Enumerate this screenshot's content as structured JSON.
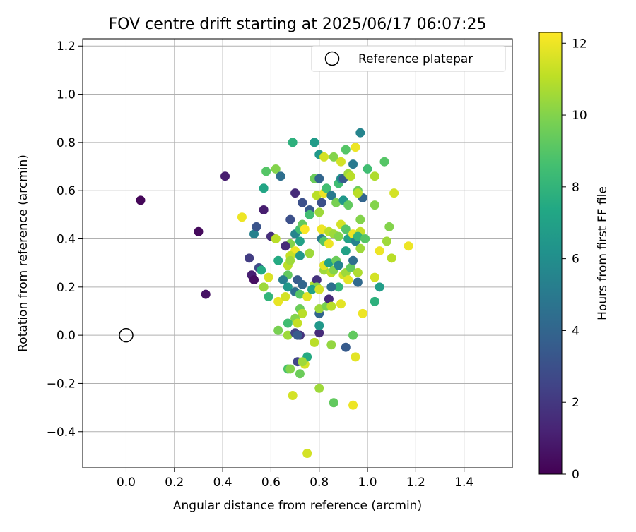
{
  "chart_data": {
    "type": "scatter",
    "title": "FOV centre drift starting at 2025/06/17 06:07:25",
    "xlabel": "Angular distance from reference (arcmin)",
    "ylabel": "Rotation from reference (arcmin)",
    "xlim": [
      -0.18,
      1.6
    ],
    "ylim": [
      -0.55,
      1.23
    ],
    "xticks": [
      0.0,
      0.2,
      0.4,
      0.6,
      0.8,
      1.0,
      1.2,
      1.4
    ],
    "xtick_labels": [
      "0.0",
      "0.2",
      "0.4",
      "0.6",
      "0.8",
      "1.0",
      "1.2",
      "1.4"
    ],
    "yticks": [
      -0.4,
      -0.2,
      0.0,
      0.2,
      0.4,
      0.6,
      0.8,
      1.0,
      1.2
    ],
    "ytick_labels": [
      "−0.4",
      "−0.2",
      "0.0",
      "0.2",
      "0.4",
      "0.6",
      "0.8",
      "1.0",
      "1.2"
    ],
    "grid": true,
    "legend": {
      "placement": "top-right",
      "entries": [
        "Reference platepar"
      ]
    },
    "reference_point": {
      "x": 0.0,
      "y": 0.0
    },
    "colorbar": {
      "label": "Hours from first FF file",
      "colormap": "viridis",
      "range": [
        0,
        12.3
      ],
      "ticks": [
        0,
        2,
        4,
        6,
        8,
        10,
        12
      ],
      "tick_labels": [
        "0",
        "2",
        "4",
        "6",
        "8",
        "10",
        "12"
      ]
    },
    "points": [
      {
        "x": 0.06,
        "y": 0.56,
        "c": 0.2
      },
      {
        "x": 0.3,
        "y": 0.43,
        "c": 0.3
      },
      {
        "x": 0.33,
        "y": 0.17,
        "c": 0.6
      },
      {
        "x": 0.41,
        "y": 0.66,
        "c": 1.0
      },
      {
        "x": 0.51,
        "y": 0.32,
        "c": 2.2
      },
      {
        "x": 0.52,
        "y": 0.25,
        "c": 1.1
      },
      {
        "x": 0.53,
        "y": 0.23,
        "c": 0.5
      },
      {
        "x": 0.55,
        "y": 0.28,
        "c": 2.8
      },
      {
        "x": 0.57,
        "y": 0.52,
        "c": 1.0
      },
      {
        "x": 0.6,
        "y": 0.41,
        "c": 1.6
      },
      {
        "x": 0.56,
        "y": 0.27,
        "c": 7.5
      },
      {
        "x": 0.53,
        "y": 0.42,
        "c": 5.3
      },
      {
        "x": 0.54,
        "y": 0.45,
        "c": 3.2
      },
      {
        "x": 0.58,
        "y": 0.68,
        "c": 9.0
      },
      {
        "x": 0.62,
        "y": 0.69,
        "c": 10.0
      },
      {
        "x": 0.64,
        "y": 0.66,
        "c": 4.5
      },
      {
        "x": 0.57,
        "y": 0.61,
        "c": 7.2
      },
      {
        "x": 0.48,
        "y": 0.49,
        "c": 12.0
      },
      {
        "x": 0.62,
        "y": 0.4,
        "c": 11.0
      },
      {
        "x": 0.59,
        "y": 0.24,
        "c": 11.6
      },
      {
        "x": 0.57,
        "y": 0.2,
        "c": 10.5
      },
      {
        "x": 0.59,
        "y": 0.16,
        "c": 8.0
      },
      {
        "x": 0.63,
        "y": 0.14,
        "c": 11.9
      },
      {
        "x": 0.66,
        "y": 0.16,
        "c": 11.5
      },
      {
        "x": 0.69,
        "y": 0.8,
        "c": 7.8
      },
      {
        "x": 0.78,
        "y": 0.8,
        "c": 6.7
      },
      {
        "x": 0.8,
        "y": 0.75,
        "c": 6.5
      },
      {
        "x": 0.82,
        "y": 0.74,
        "c": 11.5
      },
      {
        "x": 0.7,
        "y": 0.59,
        "c": 1.5
      },
      {
        "x": 0.73,
        "y": 0.55,
        "c": 3.0
      },
      {
        "x": 0.76,
        "y": 0.52,
        "c": 3.4
      },
      {
        "x": 0.76,
        "y": 0.5,
        "c": 8.5
      },
      {
        "x": 0.68,
        "y": 0.48,
        "c": 3.0
      },
      {
        "x": 0.7,
        "y": 0.42,
        "c": 5.5
      },
      {
        "x": 0.72,
        "y": 0.44,
        "c": 8.5
      },
      {
        "x": 0.73,
        "y": 0.46,
        "c": 9.3
      },
      {
        "x": 0.74,
        "y": 0.44,
        "c": 12.2
      },
      {
        "x": 0.72,
        "y": 0.39,
        "c": 7.0
      },
      {
        "x": 0.68,
        "y": 0.38,
        "c": 10.0
      },
      {
        "x": 0.66,
        "y": 0.37,
        "c": 1.5
      },
      {
        "x": 0.7,
        "y": 0.35,
        "c": 12.0
      },
      {
        "x": 0.68,
        "y": 0.33,
        "c": 11.2
      },
      {
        "x": 0.72,
        "y": 0.33,
        "c": 6.5
      },
      {
        "x": 0.76,
        "y": 0.34,
        "c": 10.5
      },
      {
        "x": 0.63,
        "y": 0.31,
        "c": 7.5
      },
      {
        "x": 0.67,
        "y": 0.29,
        "c": 11.0
      },
      {
        "x": 0.68,
        "y": 0.31,
        "c": 10.5
      },
      {
        "x": 0.67,
        "y": 0.25,
        "c": 9.3
      },
      {
        "x": 0.65,
        "y": 0.23,
        "c": 5.2
      },
      {
        "x": 0.67,
        "y": 0.2,
        "c": 6.5
      },
      {
        "x": 0.71,
        "y": 0.23,
        "c": 3.5
      },
      {
        "x": 0.73,
        "y": 0.21,
        "c": 4.0
      },
      {
        "x": 0.7,
        "y": 0.18,
        "c": 4.5
      },
      {
        "x": 0.72,
        "y": 0.17,
        "c": 9.0
      },
      {
        "x": 0.75,
        "y": 0.16,
        "c": 11.8
      },
      {
        "x": 0.78,
        "y": 0.21,
        "c": 10.8
      },
      {
        "x": 0.79,
        "y": 0.23,
        "c": 1.8
      },
      {
        "x": 0.79,
        "y": 0.2,
        "c": 10.0
      },
      {
        "x": 0.77,
        "y": 0.19,
        "c": 7.0
      },
      {
        "x": 0.8,
        "y": 0.19,
        "c": 11.5
      },
      {
        "x": 0.72,
        "y": 0.11,
        "c": 9.5
      },
      {
        "x": 0.73,
        "y": 0.09,
        "c": 11.0
      },
      {
        "x": 0.7,
        "y": 0.07,
        "c": 10.0
      },
      {
        "x": 0.71,
        "y": 0.05,
        "c": 11.2
      },
      {
        "x": 0.67,
        "y": 0.05,
        "c": 8.5
      },
      {
        "x": 0.63,
        "y": 0.02,
        "c": 9.8
      },
      {
        "x": 0.67,
        "y": 0.0,
        "c": 10.5
      },
      {
        "x": 0.7,
        "y": 0.01,
        "c": 2.5
      },
      {
        "x": 0.72,
        "y": 0.0,
        "c": 1.8
      },
      {
        "x": 0.71,
        "y": 0.0,
        "c": 3.5
      },
      {
        "x": 0.71,
        "y": -0.11,
        "c": 2.5
      },
      {
        "x": 0.74,
        "y": -0.12,
        "c": 11.5
      },
      {
        "x": 0.75,
        "y": -0.09,
        "c": 7.5
      },
      {
        "x": 0.73,
        "y": -0.11,
        "c": 10.5
      },
      {
        "x": 0.67,
        "y": -0.14,
        "c": 8.8
      },
      {
        "x": 0.68,
        "y": -0.14,
        "c": 10.0
      },
      {
        "x": 0.72,
        "y": -0.16,
        "c": 9.5
      },
      {
        "x": 0.69,
        "y": -0.25,
        "c": 11.5
      },
      {
        "x": 0.78,
        "y": -0.03,
        "c": 11.0
      },
      {
        "x": 0.8,
        "y": -0.22,
        "c": 10.5
      },
      {
        "x": 0.85,
        "y": -0.04,
        "c": 10.3
      },
      {
        "x": 0.86,
        "y": -0.28,
        "c": 9.3
      },
      {
        "x": 0.94,
        "y": -0.29,
        "c": 12.0
      },
      {
        "x": 0.95,
        "y": -0.09,
        "c": 11.8
      },
      {
        "x": 0.75,
        "y": -0.49,
        "c": 11.5
      },
      {
        "x": 0.91,
        "y": -0.05,
        "c": 3.5
      },
      {
        "x": 0.94,
        "y": 0.0,
        "c": 9.3
      },
      {
        "x": 0.8,
        "y": 0.01,
        "c": 1.5
      },
      {
        "x": 0.8,
        "y": 0.04,
        "c": 6.5
      },
      {
        "x": 0.8,
        "y": 0.09,
        "c": 4.0
      },
      {
        "x": 0.8,
        "y": 0.11,
        "c": 10.5
      },
      {
        "x": 0.83,
        "y": 0.12,
        "c": 9.8
      },
      {
        "x": 0.84,
        "y": 0.15,
        "c": 1.5
      },
      {
        "x": 0.85,
        "y": 0.12,
        "c": 11.0
      },
      {
        "x": 0.89,
        "y": 0.13,
        "c": 11.8
      },
      {
        "x": 0.88,
        "y": 0.2,
        "c": 8.0
      },
      {
        "x": 0.85,
        "y": 0.2,
        "c": 4.5
      },
      {
        "x": 0.82,
        "y": 0.27,
        "c": 10.5
      },
      {
        "x": 0.82,
        "y": 0.29,
        "c": 11.8
      },
      {
        "x": 0.84,
        "y": 0.3,
        "c": 7.0
      },
      {
        "x": 0.85,
        "y": 0.26,
        "c": 11.0
      },
      {
        "x": 0.86,
        "y": 0.27,
        "c": 10.0
      },
      {
        "x": 0.87,
        "y": 0.31,
        "c": 9.5
      },
      {
        "x": 0.88,
        "y": 0.29,
        "c": 5.5
      },
      {
        "x": 0.9,
        "y": 0.25,
        "c": 11.5
      },
      {
        "x": 0.91,
        "y": 0.26,
        "c": 10.5
      },
      {
        "x": 0.92,
        "y": 0.23,
        "c": 11.8
      },
      {
        "x": 0.93,
        "y": 0.28,
        "c": 9.3
      },
      {
        "x": 0.94,
        "y": 0.31,
        "c": 4.5
      },
      {
        "x": 0.96,
        "y": 0.26,
        "c": 10.8
      },
      {
        "x": 0.96,
        "y": 0.22,
        "c": 4.2
      },
      {
        "x": 0.91,
        "y": 0.35,
        "c": 7.0
      },
      {
        "x": 0.81,
        "y": 0.4,
        "c": 5.0
      },
      {
        "x": 0.81,
        "y": 0.44,
        "c": 12.0
      },
      {
        "x": 0.82,
        "y": 0.39,
        "c": 9.0
      },
      {
        "x": 0.84,
        "y": 0.38,
        "c": 12.0
      },
      {
        "x": 0.84,
        "y": 0.43,
        "c": 11.0
      },
      {
        "x": 0.86,
        "y": 0.42,
        "c": 10.5
      },
      {
        "x": 0.88,
        "y": 0.41,
        "c": 10.0
      },
      {
        "x": 0.89,
        "y": 0.46,
        "c": 11.5
      },
      {
        "x": 0.91,
        "y": 0.44,
        "c": 9.0
      },
      {
        "x": 0.92,
        "y": 0.4,
        "c": 7.0
      },
      {
        "x": 0.94,
        "y": 0.42,
        "c": 12.0
      },
      {
        "x": 0.95,
        "y": 0.39,
        "c": 5.5
      },
      {
        "x": 0.97,
        "y": 0.36,
        "c": 10.5
      },
      {
        "x": 0.97,
        "y": 0.43,
        "c": 11.2
      },
      {
        "x": 0.96,
        "y": 0.41,
        "c": 8.0
      },
      {
        "x": 0.99,
        "y": 0.4,
        "c": 9.0
      },
      {
        "x": 0.8,
        "y": 0.51,
        "c": 10.5
      },
      {
        "x": 0.79,
        "y": 0.58,
        "c": 11.0
      },
      {
        "x": 0.78,
        "y": 0.65,
        "c": 9.5
      },
      {
        "x": 0.8,
        "y": 0.65,
        "c": 4.0
      },
      {
        "x": 0.81,
        "y": 0.55,
        "c": 3.0
      },
      {
        "x": 0.82,
        "y": 0.59,
        "c": 12.0
      },
      {
        "x": 0.83,
        "y": 0.61,
        "c": 8.5
      },
      {
        "x": 0.85,
        "y": 0.58,
        "c": 5.0
      },
      {
        "x": 0.87,
        "y": 0.55,
        "c": 9.8
      },
      {
        "x": 0.88,
        "y": 0.63,
        "c": 8.5
      },
      {
        "x": 0.89,
        "y": 0.65,
        "c": 6.0
      },
      {
        "x": 0.9,
        "y": 0.65,
        "c": 3.5
      },
      {
        "x": 0.9,
        "y": 0.56,
        "c": 6.5
      },
      {
        "x": 0.92,
        "y": 0.54,
        "c": 9.3
      },
      {
        "x": 0.92,
        "y": 0.67,
        "c": 10.5
      },
      {
        "x": 0.91,
        "y": 0.77,
        "c": 9.0
      },
      {
        "x": 0.93,
        "y": 0.66,
        "c": 11.0
      },
      {
        "x": 0.94,
        "y": 0.71,
        "c": 5.0
      },
      {
        "x": 0.95,
        "y": 0.78,
        "c": 12.0
      },
      {
        "x": 0.97,
        "y": 0.84,
        "c": 5.5
      },
      {
        "x": 0.96,
        "y": 0.6,
        "c": 9.5
      },
      {
        "x": 0.97,
        "y": 0.48,
        "c": 10.0
      },
      {
        "x": 0.98,
        "y": 0.57,
        "c": 4.0
      },
      {
        "x": 1.0,
        "y": 0.69,
        "c": 8.5
      },
      {
        "x": 1.03,
        "y": 0.66,
        "c": 10.8
      },
      {
        "x": 1.03,
        "y": 0.54,
        "c": 10.0
      },
      {
        "x": 1.07,
        "y": 0.72,
        "c": 9.0
      },
      {
        "x": 1.08,
        "y": 0.39,
        "c": 10.5
      },
      {
        "x": 1.09,
        "y": 0.45,
        "c": 10.0
      },
      {
        "x": 1.1,
        "y": 0.32,
        "c": 11.0
      },
      {
        "x": 1.11,
        "y": 0.59,
        "c": 11.5
      },
      {
        "x": 1.05,
        "y": 0.35,
        "c": 12.0
      },
      {
        "x": 1.03,
        "y": 0.24,
        "c": 11.5
      },
      {
        "x": 1.05,
        "y": 0.2,
        "c": 6.8
      },
      {
        "x": 1.03,
        "y": 0.14,
        "c": 7.8
      },
      {
        "x": 0.98,
        "y": 0.09,
        "c": 12.0
      },
      {
        "x": 1.17,
        "y": 0.37,
        "c": 12.0
      },
      {
        "x": 0.86,
        "y": 0.74,
        "c": 10.0
      },
      {
        "x": 0.89,
        "y": 0.72,
        "c": 11.5
      },
      {
        "x": 0.96,
        "y": 0.59,
        "c": 11.0
      }
    ]
  }
}
